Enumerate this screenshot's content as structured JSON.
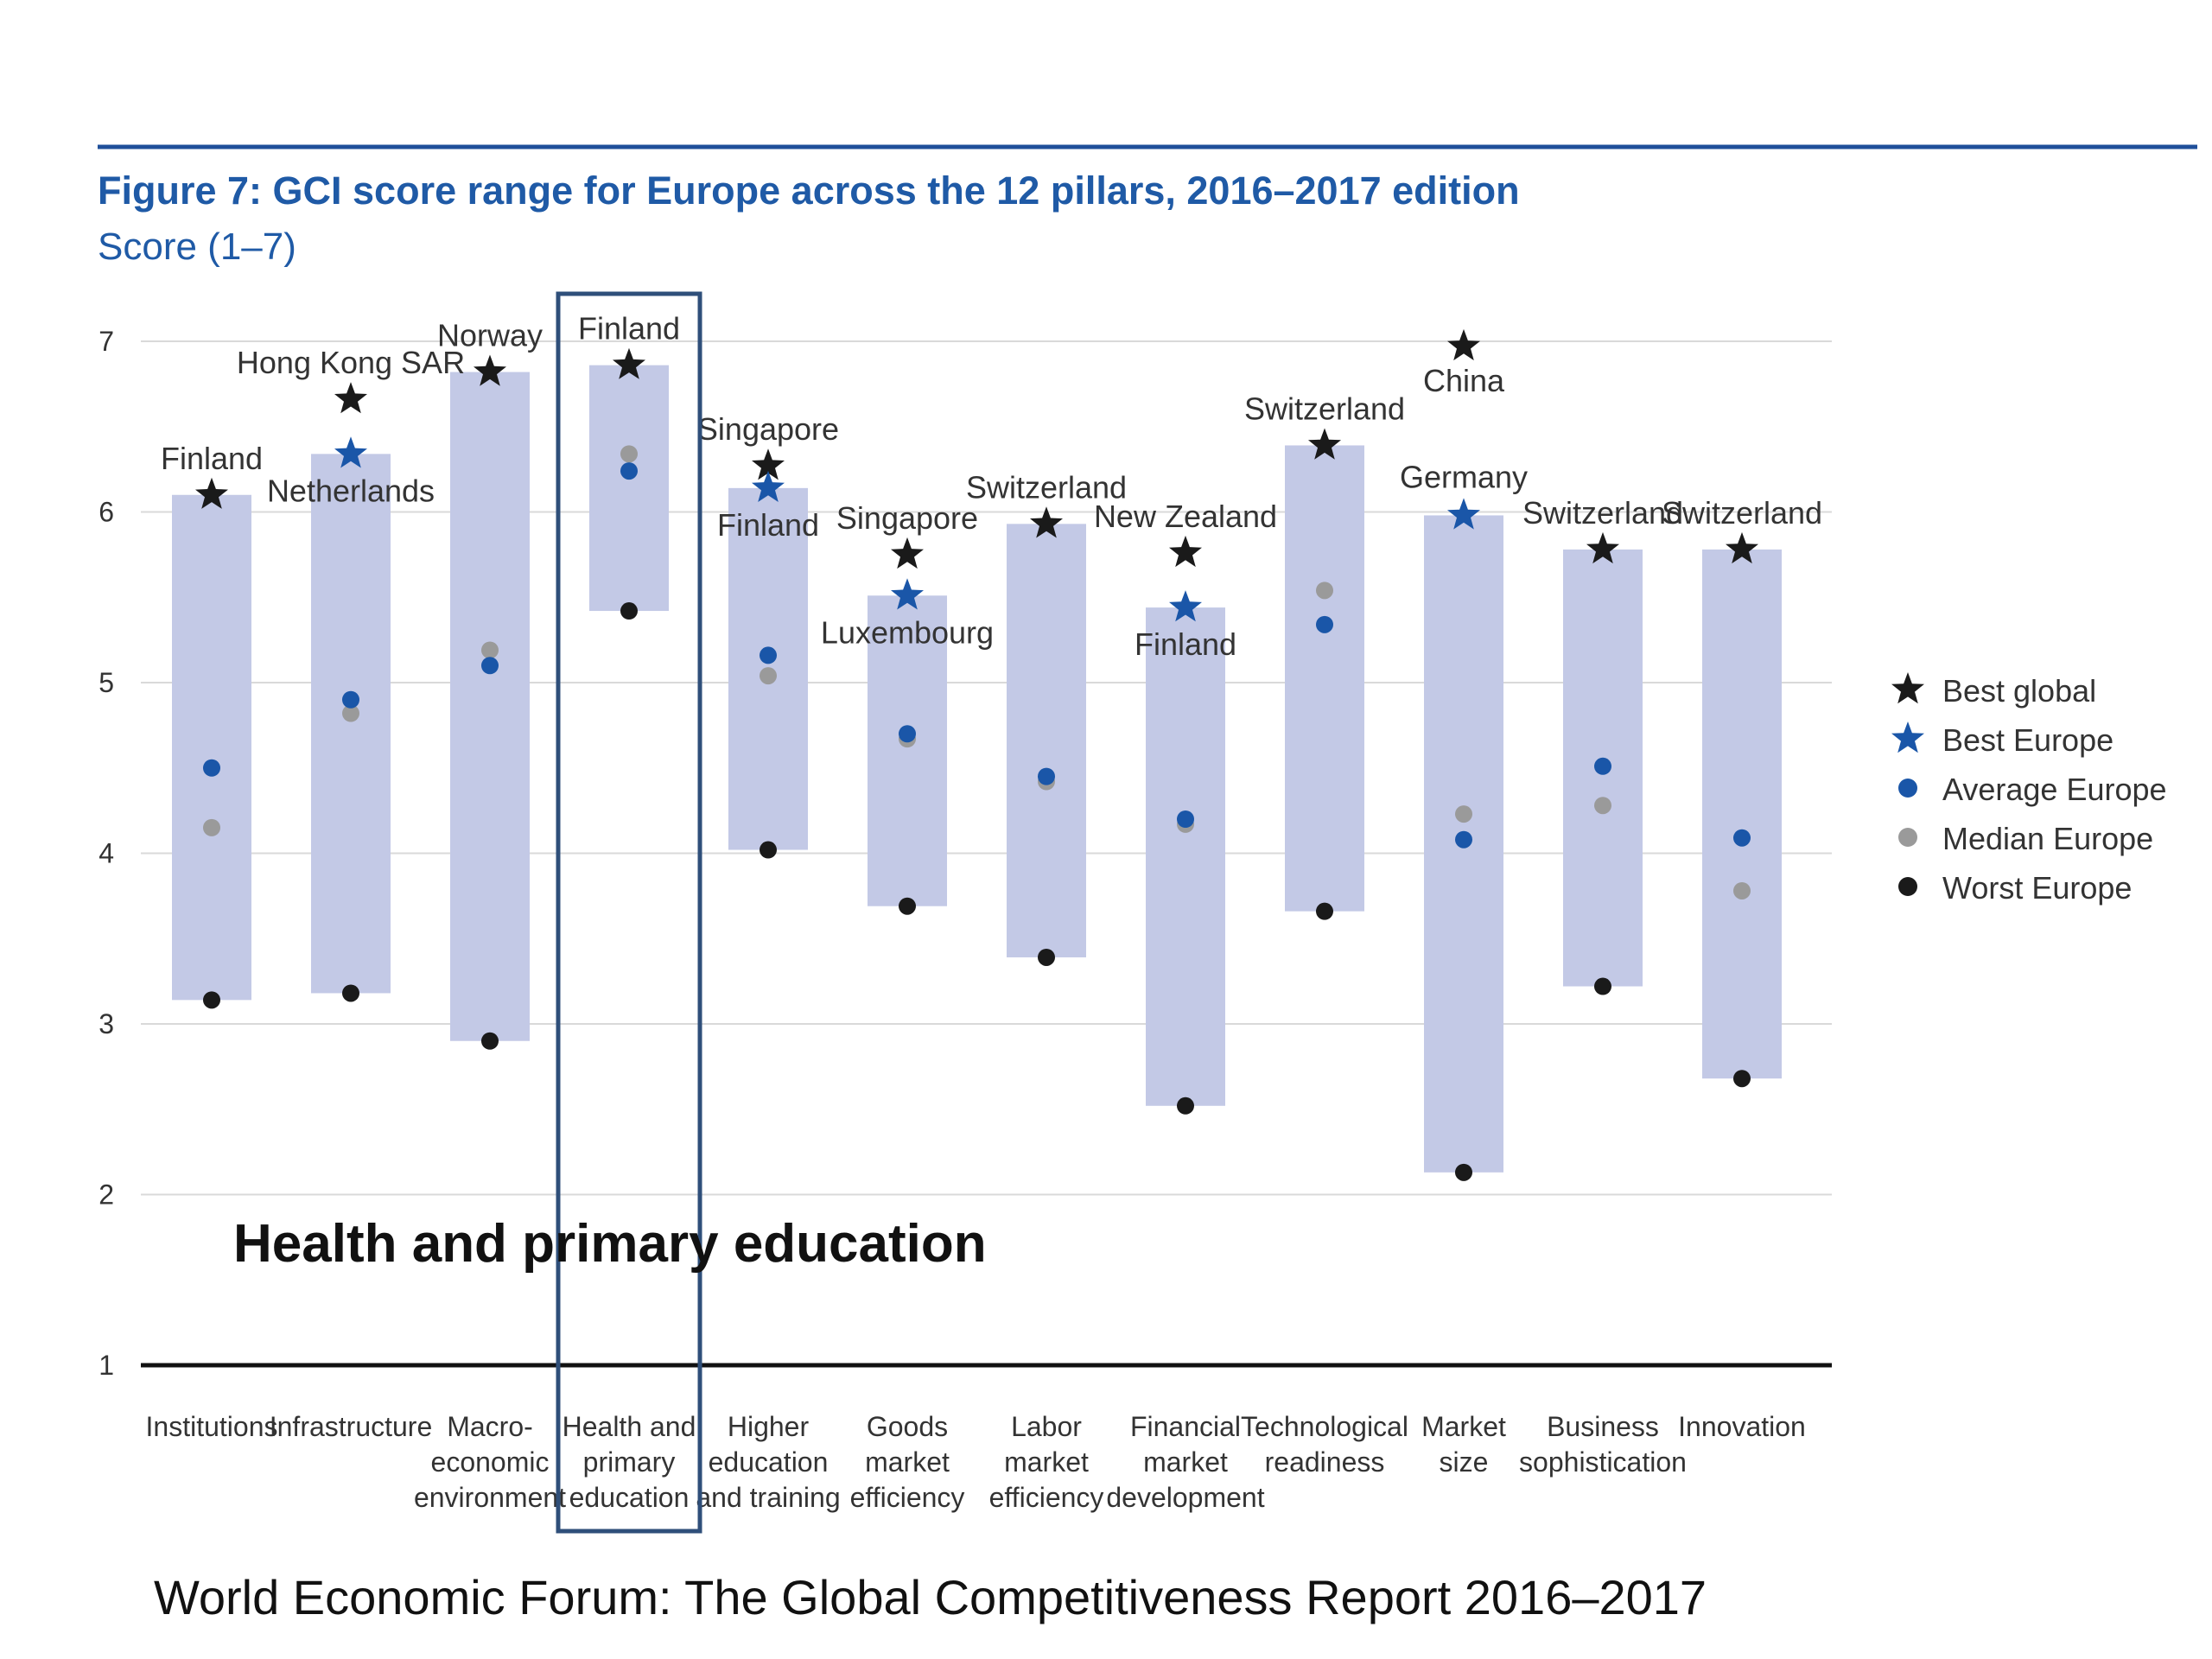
{
  "figure": {
    "title": "Figure 7: GCI score range for Europe across the 12 pillars, 2016–2017 edition",
    "subtitle": "Score (1–7)",
    "callout": "Health and primary education",
    "source": "World Economic Forum: The Global Competitiveness Report 2016–2017"
  },
  "colors": {
    "title_blue": "#1f5aa6",
    "rule_blue": "#1f4f9a",
    "range_band": "#c3c9e6",
    "best_global": "#1a1a1a",
    "best_europe": "#1a56a8",
    "average_europe": "#1a56a8",
    "median_europe": "#9a9a9a",
    "worst_europe": "#1a1a1a",
    "highlight_box": "#2f4f7a",
    "grid": "#d9d9d9",
    "baseline": "#111111"
  },
  "chart_data": {
    "type": "range",
    "ylim": [
      1,
      7
    ],
    "yticks": [
      1,
      2,
      3,
      4,
      5,
      6,
      7
    ],
    "grid": true,
    "legend_position": "right",
    "legend": [
      {
        "key": "best_global",
        "label": "Best global",
        "marker": "star",
        "color": "#1a1a1a"
      },
      {
        "key": "best_europe",
        "label": "Best Europe",
        "marker": "star",
        "color": "#1a56a8"
      },
      {
        "key": "average_europe",
        "label": "Average Europe",
        "marker": "dot",
        "color": "#1a56a8"
      },
      {
        "key": "median_europe",
        "label": "Median Europe",
        "marker": "dot",
        "color": "#9a9a9a"
      },
      {
        "key": "worst_europe",
        "label": "Worst Europe",
        "marker": "dot",
        "color": "#1a1a1a"
      }
    ],
    "highlighted_category": 3,
    "categories": [
      {
        "label": [
          "Institutions"
        ],
        "best_global": 6.1,
        "best_global_country": "Finland",
        "best_europe": null,
        "best_europe_country": "",
        "average": 4.5,
        "median": 4.15,
        "worst": 3.14
      },
      {
        "label": [
          "Infrastructure"
        ],
        "best_global": 6.66,
        "best_global_country": "Hong Kong SAR",
        "best_europe": 6.34,
        "best_europe_country": "Netherlands",
        "average": 4.9,
        "median": 4.82,
        "worst": 3.18
      },
      {
        "label": [
          "Macro-",
          "economic",
          "environment"
        ],
        "best_global": 6.82,
        "best_global_country": "Norway",
        "best_europe": null,
        "best_europe_country": "",
        "average": 5.1,
        "median": 5.19,
        "worst": 2.9
      },
      {
        "label": [
          "Health and",
          "primary",
          "education"
        ],
        "best_global": 6.86,
        "best_global_country": "Finland",
        "best_europe": null,
        "best_europe_country": "",
        "average": 6.24,
        "median": 6.34,
        "worst": 5.42
      },
      {
        "label": [
          "Higher",
          "education",
          "and training"
        ],
        "best_global": 6.27,
        "best_global_country": "Singapore",
        "best_europe": 6.14,
        "best_europe_country": "Finland",
        "average": 5.16,
        "median": 5.04,
        "worst": 4.02
      },
      {
        "label": [
          "Goods",
          "market",
          "efficiency"
        ],
        "best_global": 5.75,
        "best_global_country": "Singapore",
        "best_europe": 5.51,
        "best_europe_country": "Luxembourg",
        "average": 4.7,
        "median": 4.67,
        "worst": 3.69
      },
      {
        "label": [
          "Labor",
          "market",
          "efficiency"
        ],
        "best_global": 5.93,
        "best_global_country": "Switzerland",
        "best_europe": null,
        "best_europe_country": "",
        "average": 4.45,
        "median": 4.42,
        "worst": 3.39
      },
      {
        "label": [
          "Financial",
          "market",
          "development"
        ],
        "best_global": 5.76,
        "best_global_country": "New Zealand",
        "best_europe": 5.44,
        "best_europe_country": "Finland",
        "average": 4.2,
        "median": 4.17,
        "worst": 2.52
      },
      {
        "label": [
          "Technological",
          "readiness"
        ],
        "best_global": 6.39,
        "best_global_country": "Switzerland",
        "best_europe": null,
        "best_europe_country": "",
        "average": 5.34,
        "median": 5.54,
        "worst": 3.66
      },
      {
        "label": [
          "Market",
          "size"
        ],
        "best_global": 6.97,
        "best_global_country": "China",
        "best_europe": 5.98,
        "best_europe_country": "Germany",
        "average": 4.08,
        "median": 4.23,
        "worst": 2.13
      },
      {
        "label": [
          "Business",
          "sophistication"
        ],
        "best_global": 5.78,
        "best_global_country": "Switzerland",
        "best_europe": null,
        "best_europe_country": "",
        "average": 4.51,
        "median": 4.28,
        "worst": 3.22
      },
      {
        "label": [
          "Innovation"
        ],
        "best_global": 5.78,
        "best_global_country": "Switzerland",
        "best_europe": null,
        "best_europe_country": "",
        "average": 4.09,
        "median": 3.78,
        "worst": 2.68
      }
    ]
  }
}
